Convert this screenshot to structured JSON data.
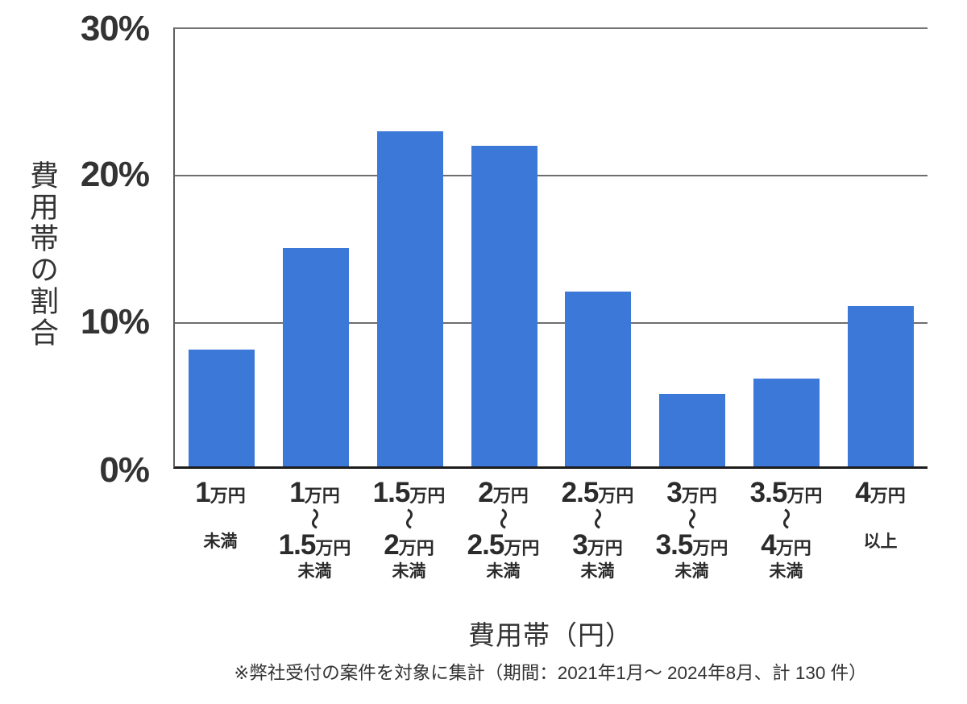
{
  "chart_data": {
    "type": "bar",
    "title": "",
    "ylabel": "費用帯の割合",
    "xlabel": "費用帯（円）",
    "ylim": [
      0,
      30
    ],
    "grid": true,
    "legend_position": "none",
    "bar_color": "#3C78D8",
    "yticks": [
      {
        "value": 30,
        "label": "30%"
      },
      {
        "value": 20,
        "label": "20%"
      },
      {
        "value": 10,
        "label": "10%"
      },
      {
        "value": 0,
        "label": "0%"
      }
    ],
    "categories": [
      {
        "label": "1万円未満",
        "num1": "1",
        "unit1": "万円",
        "tilde": "",
        "num2": "",
        "unit2": "",
        "qualifier": "未満"
      },
      {
        "label": "1万円〜1.5万円未満",
        "num1": "1",
        "unit1": "万円",
        "tilde": "〜",
        "num2": "1.5",
        "unit2": "万円",
        "qualifier": "未満"
      },
      {
        "label": "1.5万円〜2万円未満",
        "num1": "1.5",
        "unit1": "万円",
        "tilde": "〜",
        "num2": "2",
        "unit2": "万円",
        "qualifier": "未満"
      },
      {
        "label": "2万円〜2.5万円未満",
        "num1": "2",
        "unit1": "万円",
        "tilde": "〜",
        "num2": "2.5",
        "unit2": "万円",
        "qualifier": "未満"
      },
      {
        "label": "2.5万円〜3万円未満",
        "num1": "2.5",
        "unit1": "万円",
        "tilde": "〜",
        "num2": "3",
        "unit2": "万円",
        "qualifier": "未満"
      },
      {
        "label": "3万円〜3.5万円未満",
        "num1": "3",
        "unit1": "万円",
        "tilde": "〜",
        "num2": "3.5",
        "unit2": "万円",
        "qualifier": "未満"
      },
      {
        "label": "3.5万円〜4万円未満",
        "num1": "3.5",
        "unit1": "万円",
        "tilde": "〜",
        "num2": "4",
        "unit2": "万円",
        "qualifier": "未満"
      },
      {
        "label": "4万円以上",
        "num1": "4",
        "unit1": "万円",
        "tilde": "",
        "num2": "",
        "unit2": "",
        "qualifier": "以上"
      }
    ],
    "values": [
      8,
      15,
      23,
      22,
      12,
      5,
      6,
      11
    ],
    "footnote": "※弊社受付の案件を対象に集計（期間：2021年1月～ 2024年8月、計 130 件）"
  }
}
